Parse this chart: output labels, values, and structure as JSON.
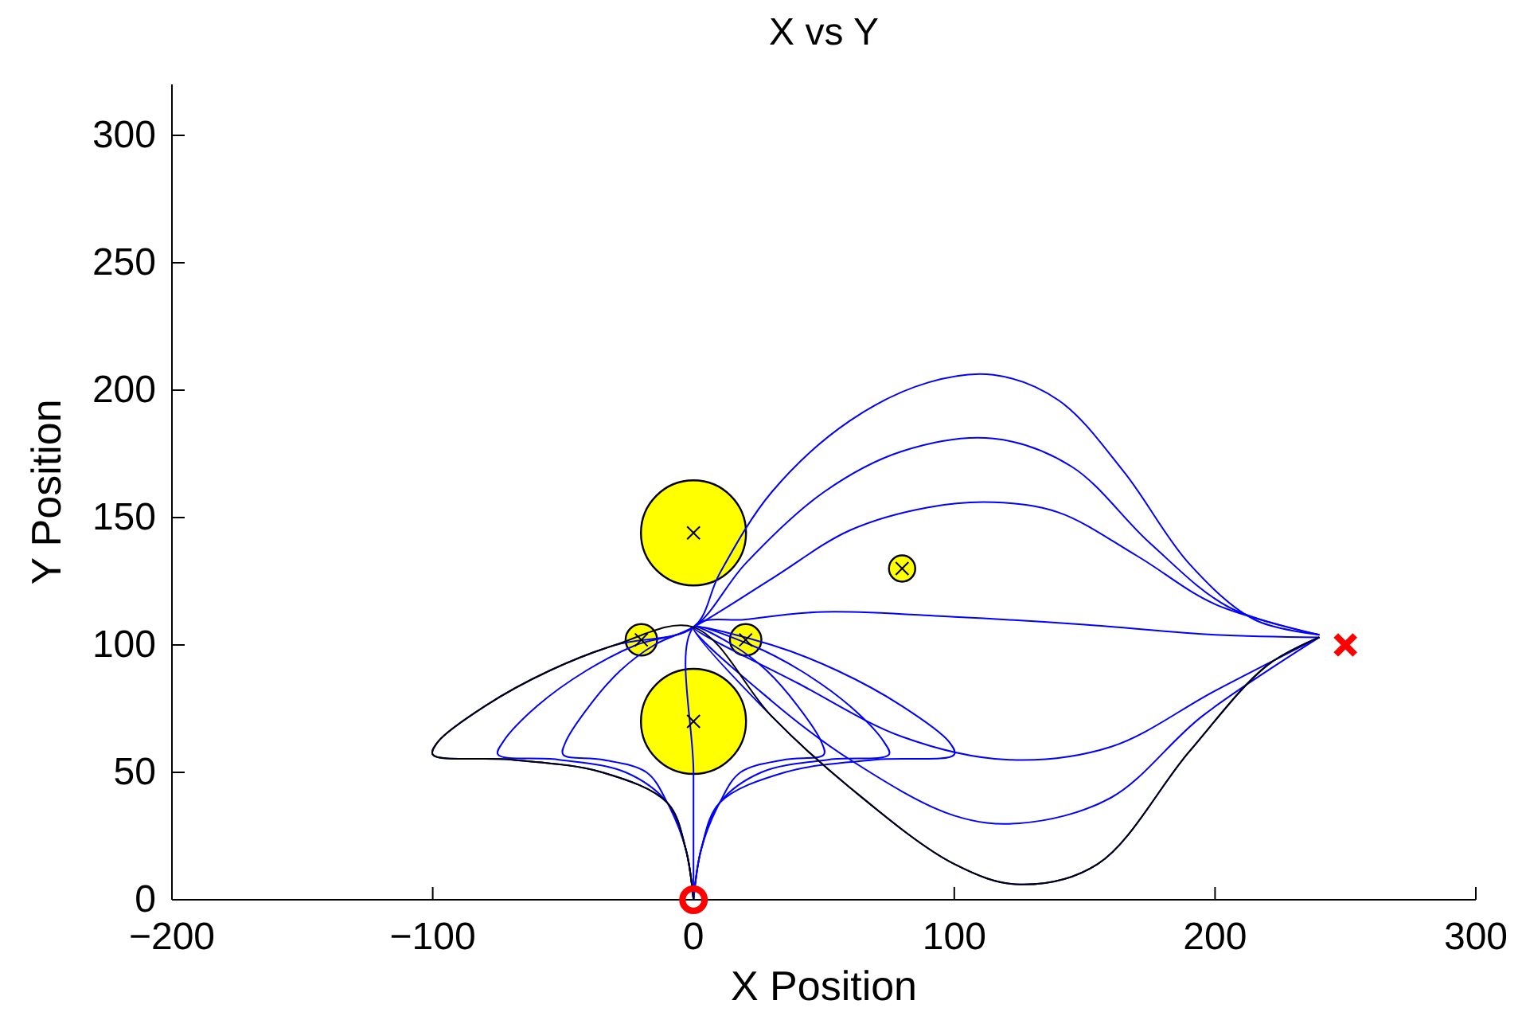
{
  "chart_data": {
    "type": "line",
    "title": "X vs Y",
    "xlabel": "X Position",
    "ylabel": "Y Position",
    "xlim": [
      -200,
      300
    ],
    "xticks": [
      -200,
      -100,
      0,
      100,
      200,
      300
    ],
    "ylim": [
      0,
      320
    ],
    "yticks": [
      0,
      50,
      100,
      150,
      200,
      250,
      300
    ],
    "grid": false,
    "line_style": "solid",
    "series": [
      {
        "type": "bubble",
        "color": "#ffff00",
        "x": [
          0,
          0,
          -20,
          20,
          80
        ],
        "values": [
          144,
          70,
          102,
          102,
          130
        ],
        "sizes": [
          1,
          1,
          0.09,
          0.09,
          0.0625
        ]
      },
      {
        "type": "scatter",
        "marker": "cross",
        "color": "#000000",
        "x": [
          0,
          0,
          -20,
          20,
          80
        ],
        "values": [
          144,
          70,
          102,
          102,
          130
        ]
      },
      {
        "color": "#0000ff",
        "x": [
          0,
          -3,
          -10,
          -35,
          -70,
          -100,
          -98,
          -80,
          -55,
          -30,
          0,
          10,
          30,
          60,
          90,
          115,
          140,
          165,
          190,
          215,
          240
        ],
        "values": [
          0,
          20,
          38,
          50,
          55,
          57,
          62,
          76,
          90,
          100,
          107,
          128,
          160,
          188,
          203,
          206,
          196,
          168,
          132,
          110,
          104
        ]
      },
      {
        "color": "#0000ff",
        "x": [
          0,
          -3,
          -10,
          -26,
          -52,
          -75,
          -73,
          -60,
          -41,
          -22,
          0,
          20,
          50,
          80,
          115,
          145,
          175,
          205,
          240
        ],
        "values": [
          0,
          20,
          38,
          50,
          55,
          57,
          62,
          76,
          90,
          100,
          107,
          132,
          160,
          176,
          181,
          170,
          140,
          115,
          104
        ]
      },
      {
        "color": "#0000ff",
        "x": [
          0,
          -3,
          -10,
          -18,
          -35,
          -50,
          -49,
          -40,
          -28,
          -15,
          0,
          30,
          60,
          90,
          115,
          140,
          170,
          200,
          240
        ],
        "values": [
          0,
          20,
          38,
          50,
          55,
          57,
          62,
          76,
          90,
          100,
          107,
          126,
          145,
          154,
          156,
          152,
          135,
          116,
          104
        ]
      },
      {
        "color": "#0000ff",
        "x": [
          0,
          0,
          0,
          20,
          50,
          100,
          150,
          200,
          240
        ],
        "values": [
          0,
          50,
          107,
          110,
          113,
          111,
          108,
          104,
          103
        ]
      },
      {
        "color": "#0000ff",
        "x": [
          0,
          3,
          10,
          35,
          70,
          100,
          98,
          80,
          55,
          30,
          0,
          40,
          80,
          120,
          160,
          200,
          240
        ],
        "values": [
          0,
          20,
          38,
          50,
          55,
          57,
          62,
          76,
          90,
          100,
          107,
          85,
          64,
          55,
          60,
          82,
          103
        ]
      },
      {
        "color": "#0000ff",
        "x": [
          0,
          3,
          10,
          26,
          52,
          75,
          73,
          60,
          41,
          22,
          0,
          30,
          60,
          100,
          125,
          160,
          195,
          240
        ],
        "values": [
          0,
          20,
          38,
          50,
          55,
          57,
          62,
          76,
          90,
          100,
          107,
          78,
          55,
          33,
          30,
          40,
          72,
          103
        ]
      },
      {
        "color": "#0000ff",
        "x": [
          0,
          3,
          10,
          18,
          35,
          50,
          49,
          40,
          28,
          15,
          0,
          30,
          60,
          100,
          125,
          155,
          190,
          220,
          240
        ],
        "values": [
          0,
          20,
          38,
          50,
          55,
          57,
          62,
          76,
          90,
          100,
          107,
          72,
          44,
          14,
          6,
          14,
          58,
          92,
          103
        ]
      },
      {
        "color": "#000000",
        "x": [
          0,
          -3,
          -10,
          -35,
          -70,
          -100,
          -98,
          -80,
          -55,
          -30,
          0,
          30,
          60,
          100,
          125,
          155,
          190,
          220,
          240
        ],
        "values": [
          0,
          20,
          38,
          50,
          55,
          57,
          62,
          76,
          90,
          100,
          107,
          72,
          44,
          14,
          6,
          14,
          58,
          92,
          103
        ]
      },
      {
        "type": "scatter",
        "marker": "circle",
        "color": "#ff0000",
        "x": [
          0
        ],
        "values": [
          0
        ]
      },
      {
        "type": "scatter",
        "marker": "cross",
        "color": "#ff0000",
        "x": [
          250
        ],
        "values": [
          100
        ]
      }
    ]
  }
}
